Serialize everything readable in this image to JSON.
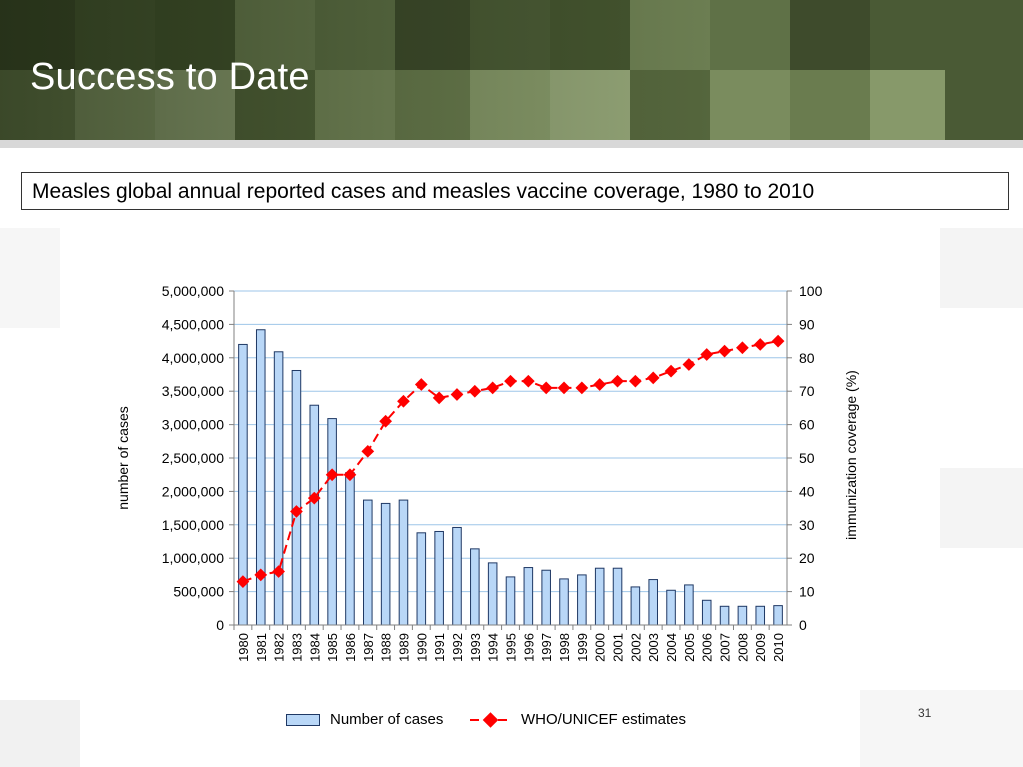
{
  "slide": {
    "title": "Success to Date",
    "subtitle": "Measles global annual reported cases and measles vaccine coverage, 1980 to 2010",
    "page_number": "31"
  },
  "colors": {
    "bar_fill": "#b9d7f7",
    "bar_stroke": "#1f3864",
    "line": "#ff0000",
    "grid": "#9ec6e8",
    "banner": "#5a6b43"
  },
  "legend": {
    "bar_label": "Number of cases",
    "line_label": "WHO/UNICEF estimates"
  },
  "chart_data": {
    "type": "bar",
    "title": "",
    "xlabel": "",
    "ylabel": "number of cases",
    "y2label": "immunization coverage (%)",
    "ylim": [
      0,
      5000000
    ],
    "y2lim": [
      0,
      100
    ],
    "y_ticks": [
      "0",
      "500,000",
      "1,000,000",
      "1,500,000",
      "2,000,000",
      "2,500,000",
      "3,000,000",
      "3,500,000",
      "4,000,000",
      "4,500,000",
      "5,000,000"
    ],
    "y2_ticks": [
      "0",
      "10",
      "20",
      "30",
      "40",
      "50",
      "60",
      "70",
      "80",
      "90",
      "100"
    ],
    "grid": true,
    "legend_position": "bottom",
    "categories": [
      "1980",
      "1981",
      "1982",
      "1983",
      "1984",
      "1985",
      "1986",
      "1987",
      "1988",
      "1989",
      "1990",
      "1991",
      "1992",
      "1993",
      "1994",
      "1995",
      "1996",
      "1997",
      "1998",
      "1999",
      "2000",
      "2001",
      "2002",
      "2003",
      "2004",
      "2005",
      "2006",
      "2007",
      "2008",
      "2009",
      "2010"
    ],
    "series": [
      {
        "name": "Number of cases",
        "type": "bar",
        "axis": "left",
        "values": [
          4200000,
          4420000,
          4090000,
          3810000,
          3290000,
          3090000,
          2280000,
          1870000,
          1820000,
          1870000,
          1380000,
          1400000,
          1460000,
          1140000,
          930000,
          720000,
          860000,
          820000,
          690000,
          750000,
          850000,
          850000,
          570000,
          680000,
          520000,
          600000,
          370000,
          280000,
          280000,
          280000,
          290000
        ]
      },
      {
        "name": "WHO/UNICEF estimates",
        "type": "line",
        "axis": "right",
        "values": [
          13,
          15,
          16,
          34,
          38,
          45,
          45,
          52,
          61,
          67,
          72,
          68,
          69,
          70,
          71,
          73,
          73,
          71,
          71,
          71,
          72,
          73,
          73,
          74,
          76,
          78,
          81,
          82,
          83,
          84,
          85
        ]
      }
    ]
  }
}
